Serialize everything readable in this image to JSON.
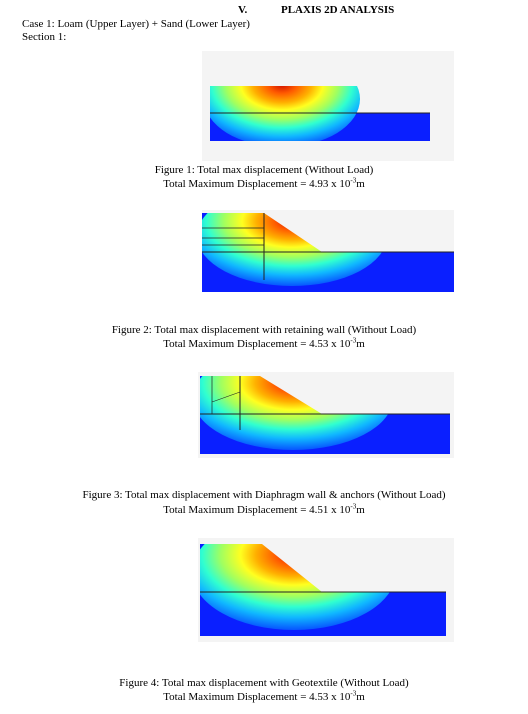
{
  "section_number": "V.",
  "section_title": "PLAXIS 2D ANALYSIS",
  "case_line": "Case 1: Loam (Upper Layer) + Sand (Lower Layer)",
  "section_line": "Section 1:",
  "figures": [
    {
      "caption": "Figure 1: Total max displacement (Without Load)",
      "result_prefix": "Total Maximum Displacement = 4.93 x 10",
      "exponent": "-3",
      "unit": "m"
    },
    {
      "caption": "Figure 2: Total max displacement with retaining wall (Without Load)",
      "result_prefix": "Total Maximum Displacement = 4.53 x 10",
      "exponent": "-3",
      "unit": "m"
    },
    {
      "caption": "Figure 3: Total max displacement with Diaphragm wall & anchors (Without Load)",
      "result_prefix": "Total Maximum Displacement = 4.51 x 10",
      "exponent": "-3",
      "unit": "m"
    },
    {
      "caption": "Figure 4: Total max displacement with Geotextile (Without Load)",
      "result_prefix": "Total Maximum Displacement = 4.53 x 10",
      "exponent": "-3",
      "unit": "m"
    }
  ],
  "colors": {
    "low": "#0a1fff",
    "mid": "#18e0ff",
    "high": "#ffe000",
    "peak": "#e02000"
  }
}
